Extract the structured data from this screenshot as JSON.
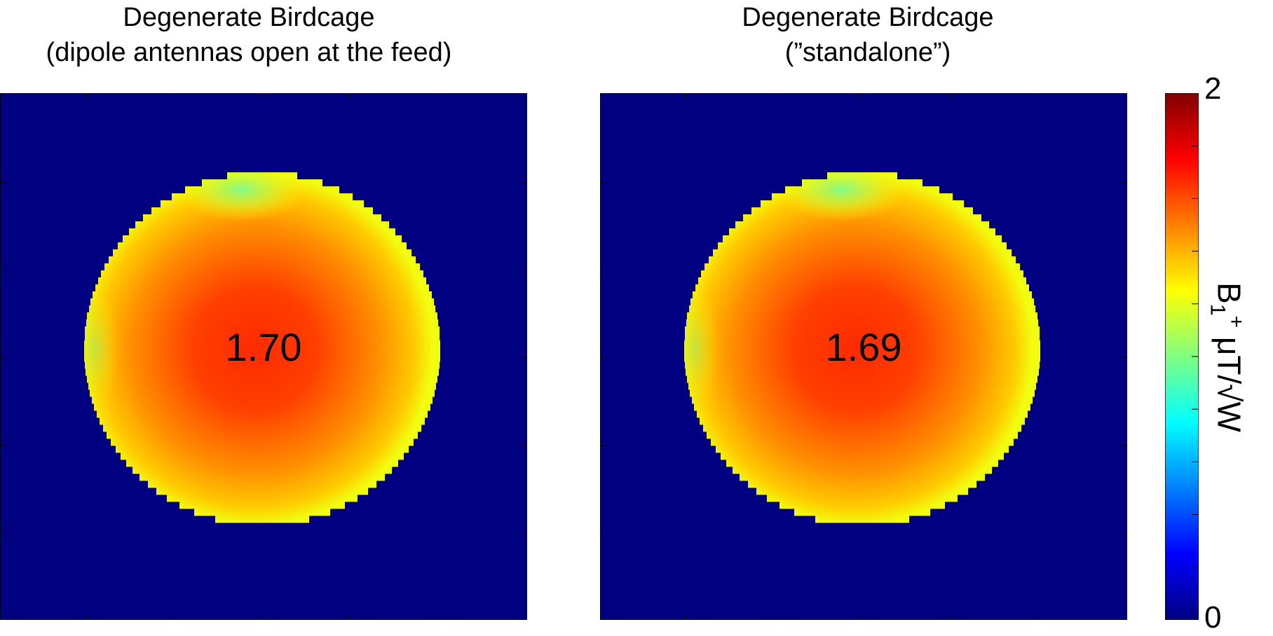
{
  "chart_data": [
    {
      "type": "heatmap",
      "title_line1": "Degenerate Birdcage",
      "title_line2": "(dipole antennas open at the feed)",
      "center_value": "1.70",
      "colormap": "jet",
      "background_value": 0,
      "peak_value": 1.7
    },
    {
      "type": "heatmap",
      "title_line1": "Degenerate Birdcage",
      "title_line2": "(”standalone”)",
      "center_value": "1.69",
      "colormap": "jet",
      "background_value": 0,
      "peak_value": 1.69
    }
  ],
  "colorbar": {
    "min_label": "0",
    "max_label": "2",
    "range": [
      0,
      2
    ],
    "label_main": "B",
    "label_sub": "1",
    "label_sup": "+",
    "label_units": " μT/√W"
  }
}
